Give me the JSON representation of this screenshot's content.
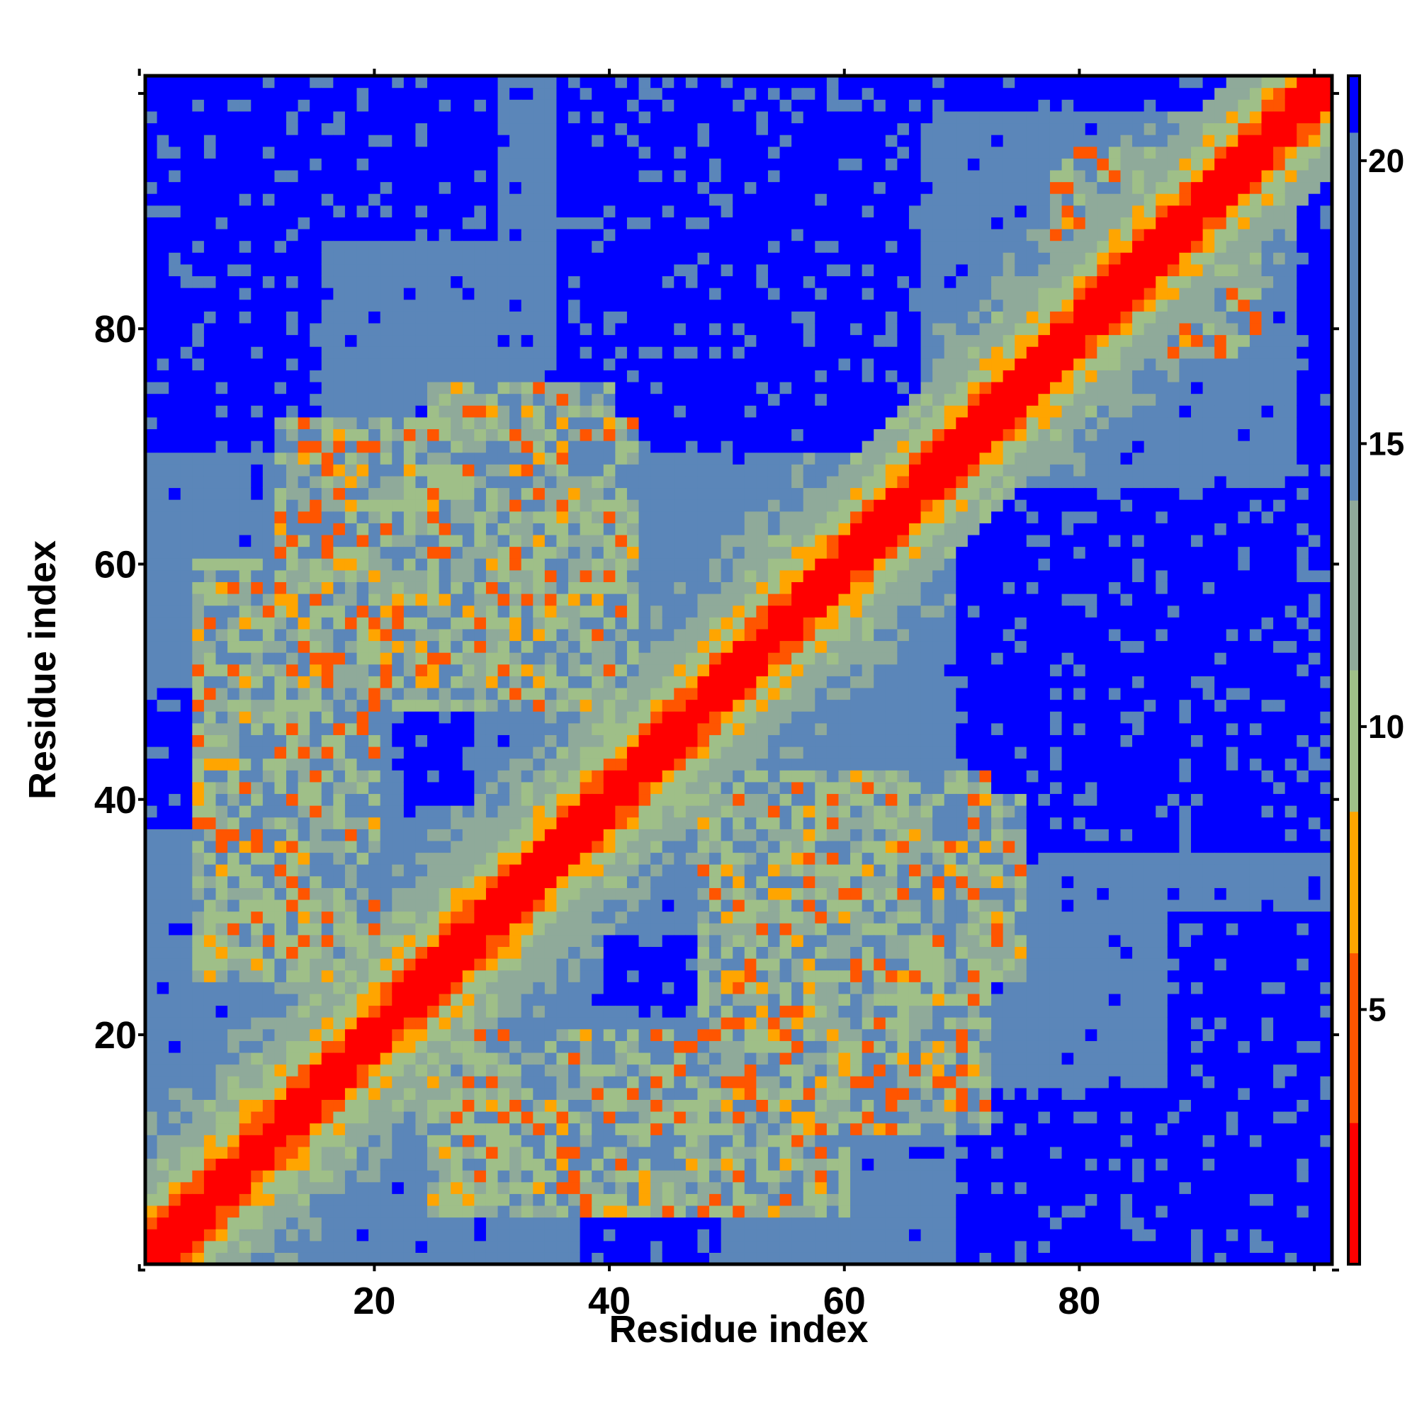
{
  "chart_data": {
    "type": "heatmap",
    "title": "",
    "xlabel": "Residue index",
    "ylabel": "Residue index",
    "n_residues": 101,
    "xlim": [
      1,
      101
    ],
    "ylim": [
      1,
      101
    ],
    "x_ticks": [
      20,
      40,
      60,
      80
    ],
    "y_ticks": [
      20,
      40,
      60,
      80
    ],
    "x_tick_labels": [
      "20",
      "40",
      "60",
      "80"
    ],
    "y_tick_labels": [
      "20",
      "40",
      "60",
      "80"
    ],
    "colorbar": {
      "range": [
        0.5,
        21.5
      ],
      "ticks": [
        5,
        10,
        15,
        20
      ],
      "tick_labels": [
        "5",
        "10",
        "15",
        "20"
      ],
      "colors": [
        {
          "max": 3,
          "color": "#ff0000"
        },
        {
          "max": 6,
          "color": "#ff5500"
        },
        {
          "max": 8.5,
          "color": "#ffa500"
        },
        {
          "max": 11,
          "color": "#9fbf88"
        },
        {
          "max": 14,
          "color": "#8faa9a"
        },
        {
          "max": 20.5,
          "color": "#5b86b9"
        },
        {
          "max": 99,
          "color": "#0000ff"
        }
      ]
    },
    "value_meaning": "distance between residues (low = close contact)",
    "structure": {
      "diagonal": "red band of close contacts along i=j, width about 3 residues",
      "off_diagonal_contacts": [
        {
          "x_range": [
            12,
            42
          ],
          "y_range": [
            48,
            72
          ],
          "level": "orange"
        },
        {
          "x_range": [
            25,
            60
          ],
          "y_range": [
            5,
            20
          ],
          "level": "orange"
        },
        {
          "x_range": [
            50,
            75
          ],
          "y_range": [
            25,
            40
          ],
          "level": "orange"
        },
        {
          "x_range": [
            78,
            95
          ],
          "y_range": [
            78,
            95
          ],
          "level": "orange"
        }
      ],
      "far_regions_blue": [
        {
          "x_range": [
            1,
            10
          ],
          "y_range": [
            70,
            101
          ]
        },
        {
          "x_range": [
            21,
            29
          ],
          "y_range": [
            88,
            101
          ]
        },
        {
          "x_range": [
            36,
            60
          ],
          "y_range": [
            70,
            101
          ]
        },
        {
          "x_range": [
            70,
            101
          ],
          "y_range": [
            38,
            66
          ]
        },
        {
          "x_range": [
            70,
            101
          ],
          "y_range": [
            1,
            15
          ]
        },
        {
          "x_range": [
            88,
            101
          ],
          "y_range": [
            15,
            30
          ]
        },
        {
          "x_range": [
            99,
            101
          ],
          "y_range": [
            66,
            101
          ]
        },
        {
          "x_range": [
            1,
            7
          ],
          "y_range": [
            38,
            49
          ]
        },
        {
          "x_range": [
            23,
            28
          ],
          "y_range": [
            40,
            50
          ]
        },
        {
          "x_range": [
            43,
            48
          ],
          "y_range": [
            22,
            27
          ]
        }
      ]
    }
  }
}
